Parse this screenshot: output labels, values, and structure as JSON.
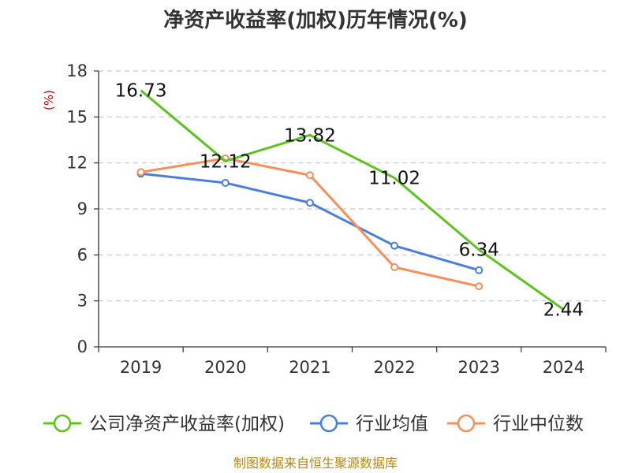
{
  "chart_data": {
    "type": "line",
    "title": "净资产收益率(加权)历年情况(%)",
    "ylabel": "(%)",
    "xlabel": "",
    "categories": [
      "2019",
      "2020",
      "2021",
      "2022",
      "2023",
      "2024"
    ],
    "ylim": [
      0,
      18
    ],
    "yticks": [
      0,
      3,
      6,
      9,
      12,
      15,
      18
    ],
    "grid": true,
    "legend_position": "bottom",
    "series": [
      {
        "name": "公司净资产收益率(加权)",
        "color": "#5cc41c",
        "values": [
          16.73,
          12.12,
          13.82,
          11.02,
          6.34,
          2.44
        ],
        "labels": [
          "16.73",
          "12.12",
          "13.82",
          "11.02",
          "6.34",
          "2.44"
        ]
      },
      {
        "name": "行业均值",
        "color": "#4a7fd9",
        "values": [
          11.3,
          10.7,
          9.4,
          6.6,
          5.0,
          null
        ]
      },
      {
        "name": "行业中位数",
        "color": "#f5905a",
        "values": [
          11.4,
          12.3,
          11.2,
          5.2,
          3.95,
          null
        ]
      }
    ],
    "source": "制图数据来自恒生聚源数据库"
  }
}
